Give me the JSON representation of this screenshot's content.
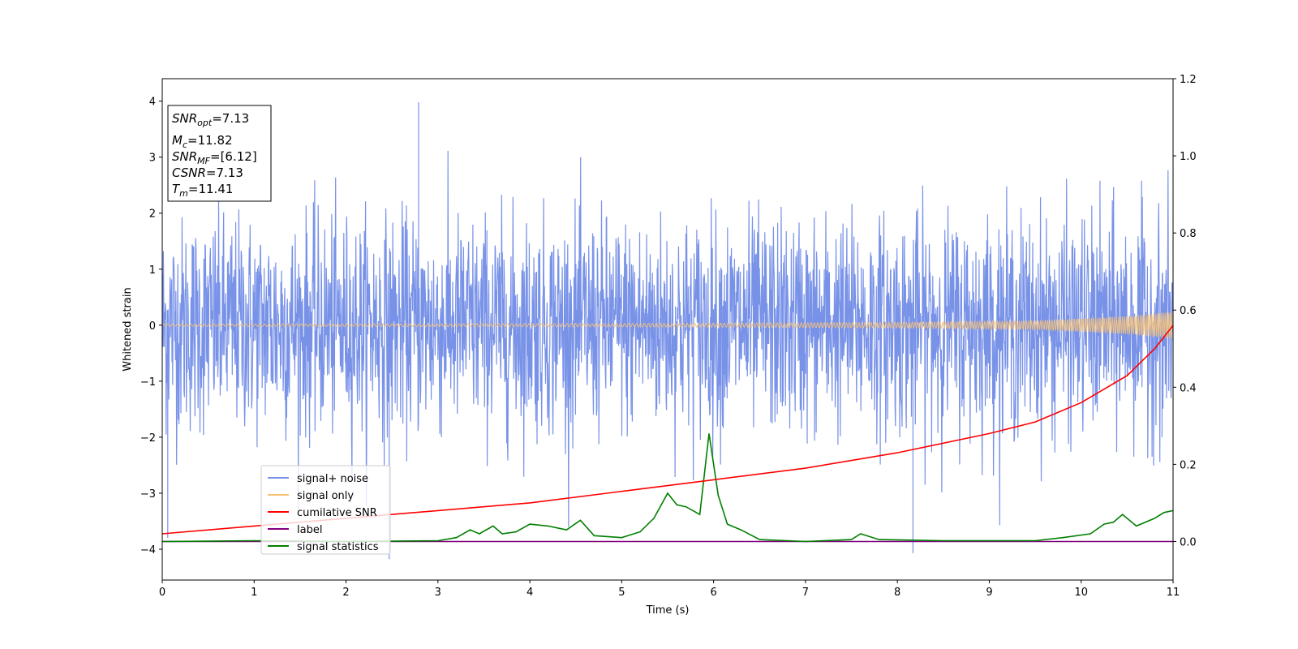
{
  "chart_data": {
    "type": "line",
    "xlabel": "Time (s)",
    "ylabel": "Whitened strain",
    "xlim": [
      0,
      11
    ],
    "ylim_left": [
      -4.55,
      4.4
    ],
    "ylim_right": [
      -0.1,
      1.2
    ],
    "x_ticks": [
      "0",
      "1",
      "2",
      "3",
      "4",
      "5",
      "6",
      "7",
      "8",
      "9",
      "10",
      "11"
    ],
    "y_ticks_left": [
      "4",
      "3",
      "2",
      "1",
      "0",
      "−1",
      "−2",
      "−3",
      "−4"
    ],
    "y_ticks_right": [
      "1.2",
      "1.0",
      "0.8",
      "0.6",
      "0.4",
      "0.2",
      "0.0"
    ],
    "legend_location": "lower-left",
    "series": [
      {
        "name": "signal+ noise",
        "color": "#7892e8",
        "axis": "left",
        "description": "white noise band, typical amplitude ~1.5, peaks near 4",
        "sampled_peaks": [
          [
            2.79,
            3.98
          ],
          [
            8.17,
            -4.07
          ],
          [
            2.47,
            -4.18
          ],
          [
            0.06,
            -3.8
          ],
          [
            10.88,
            -2.0
          ]
        ]
      },
      {
        "name": "signal only",
        "color": "#f5c27a",
        "axis": "left",
        "description": "chirp oscillation growing in amplitude toward the end",
        "amplitude_points": [
          [
            0,
            0.02
          ],
          [
            5,
            0.03
          ],
          [
            8,
            0.05
          ],
          [
            9.5,
            0.08
          ],
          [
            10.5,
            0.16
          ],
          [
            11,
            0.25
          ]
        ]
      },
      {
        "name": "cumilative SNR",
        "color": "#ff0000",
        "axis": "right",
        "points": [
          [
            0,
            0.02
          ],
          [
            1,
            0.04
          ],
          [
            2,
            0.06
          ],
          [
            3,
            0.08
          ],
          [
            4,
            0.1
          ],
          [
            5,
            0.13
          ],
          [
            6,
            0.16
          ],
          [
            7,
            0.19
          ],
          [
            8,
            0.23
          ],
          [
            9,
            0.28
          ],
          [
            9.5,
            0.31
          ],
          [
            10,
            0.36
          ],
          [
            10.5,
            0.43
          ],
          [
            10.8,
            0.5
          ],
          [
            11,
            0.56
          ]
        ]
      },
      {
        "name": "label",
        "color": "#800080",
        "axis": "right",
        "points": [
          [
            0,
            0.0
          ],
          [
            11,
            0.0
          ]
        ]
      },
      {
        "name": "signal statistics",
        "color": "#008000",
        "axis": "right",
        "points": [
          [
            0,
            0.0
          ],
          [
            1,
            0.002
          ],
          [
            2,
            0.0
          ],
          [
            3,
            0.002
          ],
          [
            3.2,
            0.01
          ],
          [
            3.35,
            0.03
          ],
          [
            3.45,
            0.02
          ],
          [
            3.6,
            0.04
          ],
          [
            3.7,
            0.02
          ],
          [
            3.85,
            0.025
          ],
          [
            4.0,
            0.045
          ],
          [
            4.2,
            0.04
          ],
          [
            4.3,
            0.035
          ],
          [
            4.4,
            0.03
          ],
          [
            4.55,
            0.055
          ],
          [
            4.7,
            0.015
          ],
          [
            5.0,
            0.01
          ],
          [
            5.2,
            0.025
          ],
          [
            5.35,
            0.06
          ],
          [
            5.5,
            0.125
          ],
          [
            5.6,
            0.095
          ],
          [
            5.7,
            0.09
          ],
          [
            5.85,
            0.07
          ],
          [
            5.95,
            0.28
          ],
          [
            6.05,
            0.12
          ],
          [
            6.15,
            0.045
          ],
          [
            6.3,
            0.03
          ],
          [
            6.5,
            0.005
          ],
          [
            7.0,
            0.0
          ],
          [
            7.5,
            0.005
          ],
          [
            7.6,
            0.02
          ],
          [
            7.8,
            0.005
          ],
          [
            8.5,
            0.002
          ],
          [
            9.5,
            0.002
          ],
          [
            9.8,
            0.01
          ],
          [
            10.1,
            0.02
          ],
          [
            10.25,
            0.045
          ],
          [
            10.35,
            0.05
          ],
          [
            10.45,
            0.07
          ],
          [
            10.6,
            0.04
          ],
          [
            10.8,
            0.06
          ],
          [
            10.9,
            0.075
          ],
          [
            11,
            0.08
          ]
        ]
      }
    ]
  },
  "info_box": {
    "snr_opt": {
      "base": "SNR",
      "sub": "opt",
      "value": "=7.13"
    },
    "mc": {
      "base": "M",
      "sub": "c",
      "value": "=11.82"
    },
    "snr_mf": {
      "base": "SNR",
      "sub": "MF",
      "value": "=[6.12]"
    },
    "csnr": {
      "base": "CSNR",
      "value": "=7.13"
    },
    "tm": {
      "base": "T",
      "sub": "m",
      "value": "=11.41"
    }
  }
}
